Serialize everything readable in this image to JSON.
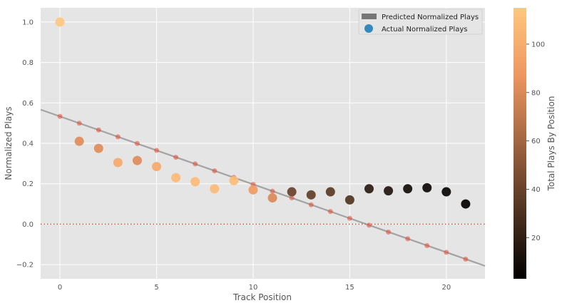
{
  "chart_data": {
    "type": "scatter",
    "title": "",
    "xlabel": "Track Position",
    "ylabel": "Normalized Plays",
    "xlim": [
      -1,
      22
    ],
    "ylim": [
      -0.27,
      1.07
    ],
    "x_ticks": [
      0,
      5,
      10,
      15,
      20
    ],
    "y_ticks": [
      -0.2,
      0.0,
      0.2,
      0.4,
      0.6,
      0.8,
      1.0
    ],
    "x_tick_labels": [
      "0",
      "5",
      "10",
      "15",
      "20"
    ],
    "y_tick_labels": [
      "−0.2",
      "0.0",
      "0.2",
      "0.4",
      "0.6",
      "0.8",
      "1.0"
    ],
    "grid": true,
    "legend_position": "top-right",
    "reference_line": {
      "y": 0.0,
      "style": "dotted",
      "color": "#e24a33"
    },
    "series": [
      {
        "name": "Predicted Normalized Plays",
        "kind": "regression-line",
        "color": "#777777",
        "intercept": 0.533,
        "slope": -0.0336,
        "x": [
          0,
          1,
          2,
          3,
          4,
          5,
          6,
          7,
          8,
          9,
          10,
          11,
          12,
          13,
          14,
          15,
          16,
          17,
          18,
          19,
          20,
          21
        ],
        "y": [
          0.533,
          0.499,
          0.466,
          0.432,
          0.399,
          0.365,
          0.331,
          0.298,
          0.264,
          0.231,
          0.197,
          0.163,
          0.13,
          0.096,
          0.063,
          0.029,
          -0.005,
          -0.039,
          -0.072,
          -0.106,
          -0.139,
          -0.173
        ],
        "marker_color": "#e24a33"
      },
      {
        "name": "Actual Normalized Plays",
        "kind": "scatter",
        "legend_color": "#348abd",
        "x": [
          0,
          1,
          2,
          3,
          4,
          5,
          6,
          7,
          8,
          9,
          10,
          11,
          12,
          13,
          14,
          15,
          16,
          17,
          18,
          19,
          20,
          21
        ],
        "y": [
          1.0,
          0.41,
          0.375,
          0.305,
          0.315,
          0.285,
          0.23,
          0.21,
          0.175,
          0.215,
          0.17,
          0.13,
          0.16,
          0.145,
          0.16,
          0.12,
          0.175,
          0.165,
          0.175,
          0.18,
          0.16,
          0.1
        ],
        "color_value": [
          115,
          82,
          82,
          98,
          82,
          98,
          108,
          108,
          108,
          110,
          90,
          80,
          40,
          38,
          35,
          32,
          18,
          15,
          10,
          8,
          6,
          4
        ]
      }
    ],
    "colorbar": {
      "label": "Total Plays By Position",
      "colormap": "copper",
      "min": 3,
      "max": 115,
      "ticks": [
        20,
        40,
        60,
        80,
        100
      ],
      "tick_labels": [
        "20",
        "40",
        "60",
        "80",
        "100"
      ]
    }
  }
}
